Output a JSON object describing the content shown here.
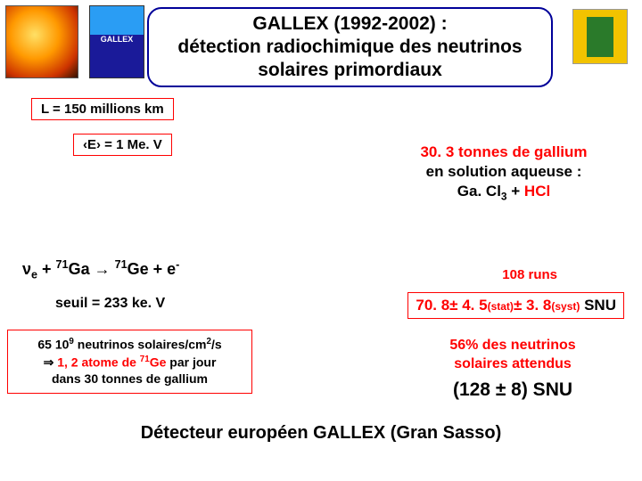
{
  "title": "GALLEX (1992-2002) :\ndétection radiochimique des neutrinos solaires primordiaux",
  "logo_gallex": "GALLEX",
  "distance": "L = 150 millions km",
  "energy_html": "‹E› = 1 Me. V",
  "gallium_l1": "30. 3 tonnes de gallium",
  "gallium_l2": "en solution aqueuse :",
  "gallium_l3a": "Ga. Cl",
  "gallium_l3a_sub": "3",
  "gallium_l3b": " + ",
  "gallium_l3c": "HCl",
  "reaction_nu": "ν",
  "reaction_nusub": "e",
  "reaction_plus1": " + ",
  "reaction_ga_sup": "71",
  "reaction_ga": "Ga",
  "reaction_arrow": " → ",
  "reaction_ge_sup": "71",
  "reaction_ge": "Ge + e",
  "reaction_ge_sup2": "-",
  "seuil": "seuil = 233 ke. V",
  "runs": "108 runs",
  "snu_main": "70. 8",
  "snu_pm1": "± 4. 5",
  "snu_stat": "(stat)",
  "snu_pm2": "± 3. 8",
  "snu_syst": "(syst)",
  "snu_unit": " SNU",
  "flux_l1a": "65  10",
  "flux_l1a_sup": "9",
  "flux_l1b": "  neutrinos solaires/cm",
  "flux_l1b_sup": "2",
  "flux_l1c": "/s",
  "flux_l2a": "⇒ ",
  "flux_l2b": "1, 2 atome de ",
  "flux_l2c_sup": "71",
  "flux_l2c": "Ge",
  "flux_l2d": "  par jour",
  "flux_l3": "dans 30 tonnes de gallium",
  "expected_l1": "56% des neutrinos",
  "expected_l2": "solaires attendus",
  "expected_snu": "(128 ± 8) SNU",
  "footer": "Détecteur européen GALLEX (Gran Sasso)"
}
